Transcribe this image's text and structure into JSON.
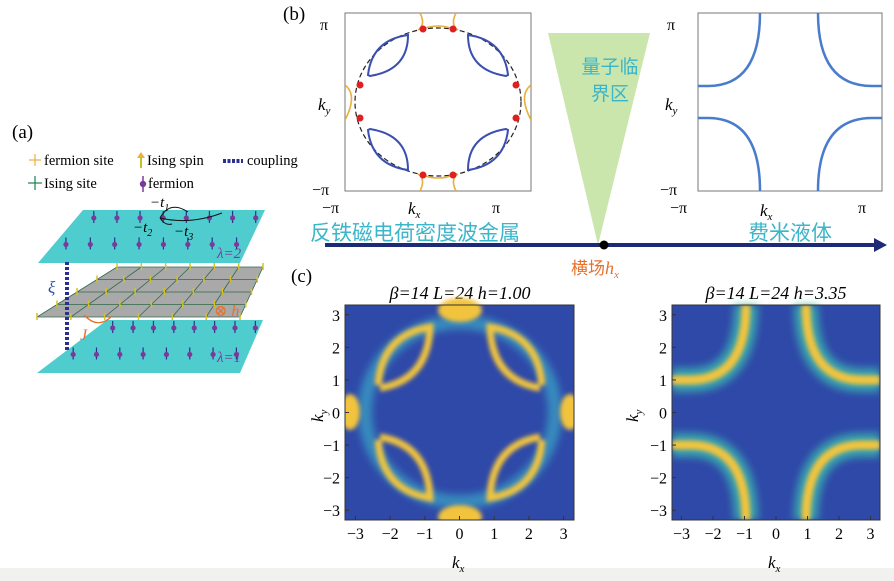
{
  "panel_a": {
    "label": "(a)",
    "legend": {
      "fermion_site": "fermion site",
      "ising_spin": "Ising spin",
      "coupling": "coupling",
      "ising_site": "Ising site",
      "fermion": "fermion"
    },
    "hopping": {
      "t1": "t",
      "t1_sub": "1",
      "t2": "t",
      "t2_sub": "2",
      "t3": "t",
      "t3_sub": "3",
      "minus": "−"
    },
    "layer_top": "λ=2",
    "layer_bottom": "λ=1",
    "field": "⊗ h",
    "xi": "ξ",
    "J": "J",
    "colors": {
      "plane": "#3cc6c9",
      "ising_plane": "#a9a9a9",
      "fermion": "#7a3a9a",
      "coupling": "#2b2f8f",
      "accent": "#e8702a"
    }
  },
  "panel_b": {
    "label": "(b)",
    "left_plot": {
      "y_top": "π",
      "y_bottom": "−π",
      "x_left": "−π",
      "x_right": "π",
      "xlabel": "k",
      "xlabel_sub": "x",
      "ylabel": "k",
      "ylabel_sub": "y"
    },
    "right_plot": {
      "y_top": "π",
      "y_bottom": "−π",
      "x_left": "−π",
      "x_right": "π",
      "xlabel": "k",
      "xlabel_sub": "x",
      "ylabel": "k",
      "ylabel_sub": "y"
    },
    "critical_region_line1": "量子临",
    "critical_region_line2": "界区",
    "phase_left": "反铁磁电荷密度波金属",
    "phase_right": "费米液体",
    "axis_label": "横场",
    "axis_var": "h",
    "axis_var_sub": "x",
    "colors": {
      "fermi_surface": "#3a66c4",
      "folded": "#e8b040",
      "hotspot": "#e02020",
      "triangle": "#c4e3a4",
      "phase_text": "#3bb5c9",
      "axis": "#1e2a78"
    }
  },
  "panel_c": {
    "label": "(c)",
    "left_title": "β=14 L=24 h=1.00",
    "right_title": "β=14 L=24 h=3.35",
    "ticks": [
      "−3",
      "−2",
      "−1",
      "0",
      "1",
      "2",
      "3"
    ],
    "tick_values": [
      -3,
      -2,
      -1,
      0,
      1,
      2,
      3
    ],
    "xlabel": "k",
    "xlabel_sub": "x",
    "ylabel": "k",
    "ylabel_sub": "y",
    "range": [
      -3.3,
      3.3
    ]
  }
}
